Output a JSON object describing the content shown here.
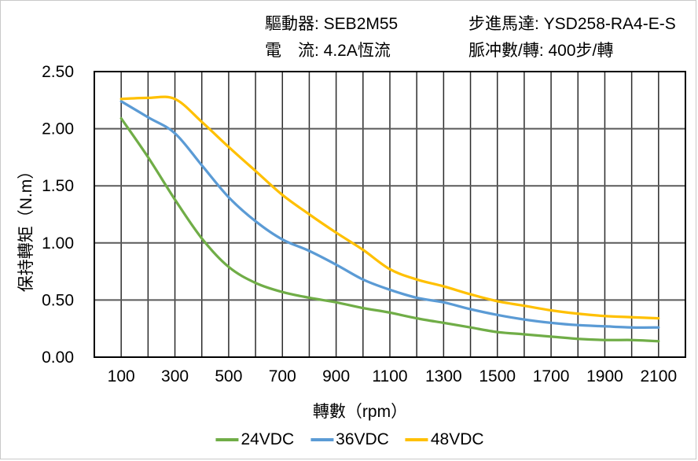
{
  "header": {
    "col1": [
      "驅動器: SEB2M55",
      "電　流: 4.2A恆流"
    ],
    "col2": [
      "步進馬達: YSD258-RA4-E-S",
      "脈冲數/轉: 400步/轉"
    ]
  },
  "chart_data": {
    "type": "line",
    "title": "",
    "xlabel": "轉數（rpm）",
    "ylabel": "保持轉矩（N.m）",
    "x": [
      100,
      200,
      300,
      400,
      500,
      600,
      700,
      800,
      900,
      1000,
      1100,
      1200,
      1300,
      1400,
      1500,
      1600,
      1700,
      1800,
      1900,
      2000,
      2100
    ],
    "series": [
      {
        "name": "24VDC",
        "color": "#70AD47",
        "values": [
          2.09,
          1.75,
          1.38,
          1.04,
          0.79,
          0.65,
          0.57,
          0.52,
          0.48,
          0.43,
          0.39,
          0.34,
          0.3,
          0.26,
          0.22,
          0.2,
          0.18,
          0.16,
          0.15,
          0.15,
          0.14
        ]
      },
      {
        "name": "36VDC",
        "color": "#5B9BD5",
        "values": [
          2.24,
          2.1,
          1.96,
          1.68,
          1.4,
          1.19,
          1.03,
          0.93,
          0.81,
          0.68,
          0.59,
          0.52,
          0.48,
          0.42,
          0.37,
          0.33,
          0.3,
          0.28,
          0.27,
          0.26,
          0.26
        ]
      },
      {
        "name": "48VDC",
        "color": "#FFC000",
        "values": [
          2.26,
          2.27,
          2.26,
          2.06,
          1.84,
          1.63,
          1.42,
          1.25,
          1.09,
          0.94,
          0.77,
          0.68,
          0.62,
          0.55,
          0.49,
          0.45,
          0.41,
          0.38,
          0.36,
          0.35,
          0.34
        ]
      }
    ],
    "xlim": [
      0,
      2200
    ],
    "ylim": [
      0,
      2.5
    ],
    "x_grid_step": 100,
    "y_grid_step": 0.5,
    "x_tick_labels": [
      "100",
      "300",
      "500",
      "700",
      "900",
      "1100",
      "1300",
      "1500",
      "1700",
      "1900",
      "2100"
    ],
    "y_tick_labels": [
      "0.00",
      "0.50",
      "1.00",
      "1.50",
      "2.00",
      "2.50"
    ],
    "grid": "on",
    "legend_position": "bottom"
  },
  "colors": {
    "background": "#ffffff",
    "outer_border": "#c9c9c9",
    "frame": "#000000",
    "h_grid": "#5a5a5a",
    "v_grid": "#2b2b2b",
    "text": "#000000"
  }
}
